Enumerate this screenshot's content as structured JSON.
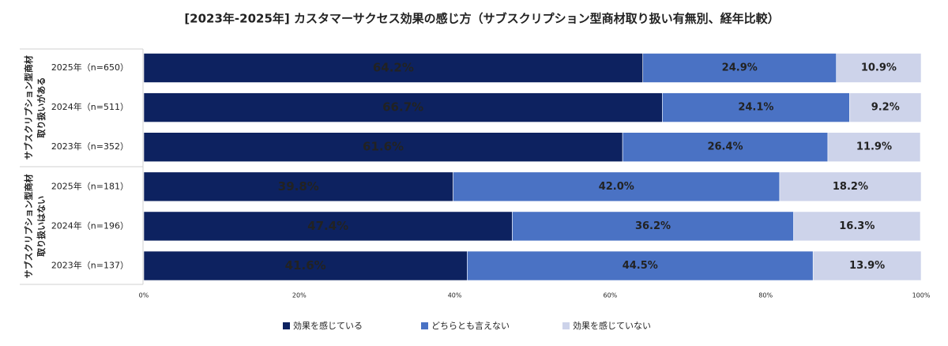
{
  "chart_data": {
    "type": "stacked-barh",
    "title": "[2023年-2025年] カスタマーサクセス効果の感じ方（サブスクリプション型商材取り扱い有無別、経年比較）",
    "groups": [
      {
        "lines": [
          "サブスクリプション型商材",
          "取り扱いがある"
        ],
        "categories": [
          "2025年（n=650）",
          "2024年（n=511）",
          "2023年（n=352）"
        ]
      },
      {
        "lines": [
          "サブスクリプション型商材",
          "取り扱いはない"
        ],
        "categories": [
          "2025年（n=181）",
          "2024年（n=196）",
          "2023年（n=137）"
        ]
      }
    ],
    "series": [
      {
        "name": "効果を感じている",
        "color": "#0d2260",
        "values": [
          64.2,
          66.7,
          61.6,
          39.8,
          47.4,
          41.6
        ],
        "value_labels": [
          "64.2%",
          "66.7%",
          "61.6%",
          "39.8%",
          "47.4%",
          "41.6%"
        ]
      },
      {
        "name": "どちらとも言えない",
        "color": "#4a72c4",
        "values": [
          24.9,
          24.1,
          26.4,
          42.0,
          36.2,
          44.5
        ],
        "value_labels": [
          "24.9%",
          "24.1%",
          "26.4%",
          "42.0%",
          "36.2%",
          "44.5%"
        ]
      },
      {
        "name": "効果を感じていない",
        "color": "#cdd3ea",
        "values": [
          10.9,
          9.2,
          11.9,
          18.2,
          16.3,
          13.9
        ],
        "value_labels": [
          "10.9%",
          "9.2%",
          "11.9%",
          "18.2%",
          "16.3%",
          "13.9%"
        ]
      }
    ],
    "xlim": [
      0,
      100
    ],
    "xticks": [
      {
        "value": 0,
        "label": "0%"
      },
      {
        "value": 20,
        "label": "20%"
      },
      {
        "value": 40,
        "label": "40%"
      },
      {
        "value": 60,
        "label": "60%"
      },
      {
        "value": 80,
        "label": "80%"
      },
      {
        "value": 100,
        "label": "100%"
      }
    ],
    "grid": false,
    "legend": "bottom"
  }
}
